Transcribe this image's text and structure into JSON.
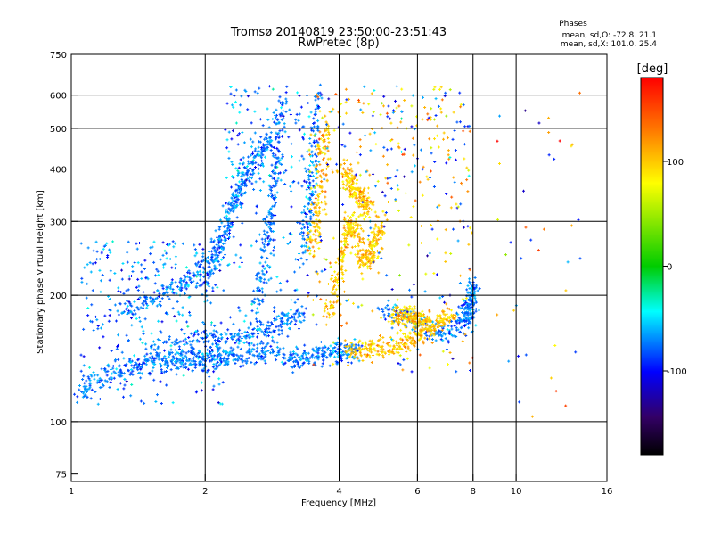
{
  "chart_data": {
    "type": "scatter",
    "title": "Tromsø 20140819 23:50:00-23:51:43",
    "subtitle": "RwPretec (8p)",
    "xlabel": "Frequency [MHz]",
    "ylabel": "Stationary phase Virtual Height [km]",
    "xscale": "log",
    "yscale": "log",
    "xlim": [
      1,
      16
    ],
    "ylim": [
      72,
      750
    ],
    "xticks": [
      1,
      2,
      4,
      6,
      8,
      10,
      16
    ],
    "xtick_labels": [
      "1",
      "2",
      "4",
      "6",
      "8",
      "10",
      "16"
    ],
    "yticks": [
      75,
      100,
      200,
      300,
      400,
      500,
      600,
      750
    ],
    "ytick_labels": [
      "75",
      "100",
      "200",
      "300",
      "400",
      "500",
      "600",
      "750"
    ],
    "grid": true,
    "stats": {
      "heading": "Phases",
      "line1": "mean, sd,O: -72.8, 21.1",
      "line2": "mean, sd,X: 101.0, 25.4"
    },
    "colorbar": {
      "label": "[deg]",
      "range": [
        -180,
        180
      ],
      "ticks": [
        100,
        0,
        -100
      ],
      "tick_labels": [
        "100",
        "0",
        "-100"
      ]
    },
    "series": [
      {
        "mode": "O",
        "color_phase_deg": -72.8,
        "traces": [
          {
            "x": [
              1.05,
              1.1,
              1.2,
              1.3,
              1.4,
              1.5,
              1.6,
              1.7,
              1.8,
              1.9,
              2.0,
              2.1,
              2.2,
              2.3,
              2.5,
              2.7,
              2.9
            ],
            "y": [
              118,
              122,
              128,
              132,
              135,
              138,
              140,
              140,
              140,
              140,
              140,
              140,
              141,
              142,
              143,
              145,
              150
            ]
          },
          {
            "x": [
              1.5,
              1.7,
              1.9,
              2.1,
              2.3,
              2.5,
              2.7,
              2.9,
              3.1,
              3.3
            ],
            "y": [
              150,
              152,
              155,
              157,
              159,
              162,
              165,
              170,
              175,
              180
            ]
          },
          {
            "x": [
              1.3,
              1.45,
              1.6,
              1.75,
              1.9,
              2.05,
              2.2,
              2.35,
              2.5
            ],
            "y": [
              185,
              190,
              200,
              210,
              225,
              245,
              280,
              340,
              420
            ]
          },
          {
            "x": [
              2.0,
              2.1,
              2.2,
              2.3,
              2.4,
              2.5,
              2.6,
              2.7,
              2.8
            ],
            "y": [
              210,
              240,
              280,
              320,
              360,
              380,
              420,
              450,
              470
            ]
          },
          {
            "x": [
              2.6,
              2.7,
              2.75,
              2.8,
              2.85,
              2.9,
              2.95,
              3.0
            ],
            "y": [
              180,
              220,
              260,
              300,
              350,
              420,
              500,
              580
            ]
          },
          {
            "x": [
              3.0,
              3.2,
              3.4,
              3.6,
              3.8,
              4.0,
              4.2,
              4.4
            ],
            "y": [
              140,
              142,
              143,
              144,
              145,
              146,
              147,
              148
            ]
          },
          {
            "x": [
              3.3,
              3.4,
              3.45,
              3.5,
              3.55,
              3.6
            ],
            "y": [
              250,
              300,
              350,
              400,
              500,
              600
            ]
          },
          {
            "x": [
              5.0,
              5.5,
              6.0,
              6.5,
              7.0,
              7.5,
              7.8
            ],
            "y": [
              185,
              180,
              175,
              165,
              160,
              175,
              190
            ]
          },
          {
            "x": [
              7.8,
              7.85,
              7.9,
              7.95,
              8.0
            ],
            "y": [
              170,
              180,
              190,
              200,
              210
            ]
          }
        ]
      },
      {
        "mode": "X",
        "color_phase_deg": 101.0,
        "traces": [
          {
            "x": [
              3.8,
              3.9,
              4.0,
              4.1,
              4.2,
              4.3,
              4.4,
              4.5,
              4.6,
              4.7,
              4.8,
              4.9,
              5.0
            ],
            "y": [
              180,
              200,
              230,
              260,
              290,
              300,
              280,
              250,
              240,
              250,
              260,
              280,
              300
            ]
          },
          {
            "x": [
              4.1,
              4.2,
              4.3,
              4.4,
              4.5,
              4.6,
              4.7
            ],
            "y": [
              400,
              380,
              360,
              350,
              340,
              330,
              320
            ]
          },
          {
            "x": [
              4.2,
              4.5,
              4.8,
              5.1,
              5.4,
              5.7,
              6.0,
              6.3,
              6.6,
              6.9,
              7.2
            ],
            "y": [
              147,
              148,
              150,
              151,
              152,
              155,
              160,
              166,
              170,
              175,
              180
            ]
          },
          {
            "x": [
              5.3,
              5.5,
              5.7,
              5.9,
              6.1,
              6.3
            ],
            "y": [
              175,
              178,
              180,
              178,
              175,
              172
            ]
          },
          {
            "x": [
              3.5,
              3.55,
              3.6,
              3.65,
              3.7,
              3.75
            ],
            "y": [
              250,
              280,
              320,
              380,
              450,
              520
            ]
          }
        ]
      }
    ],
    "scatter_note": "Additional diffuse echo points are drawn around these traces."
  }
}
